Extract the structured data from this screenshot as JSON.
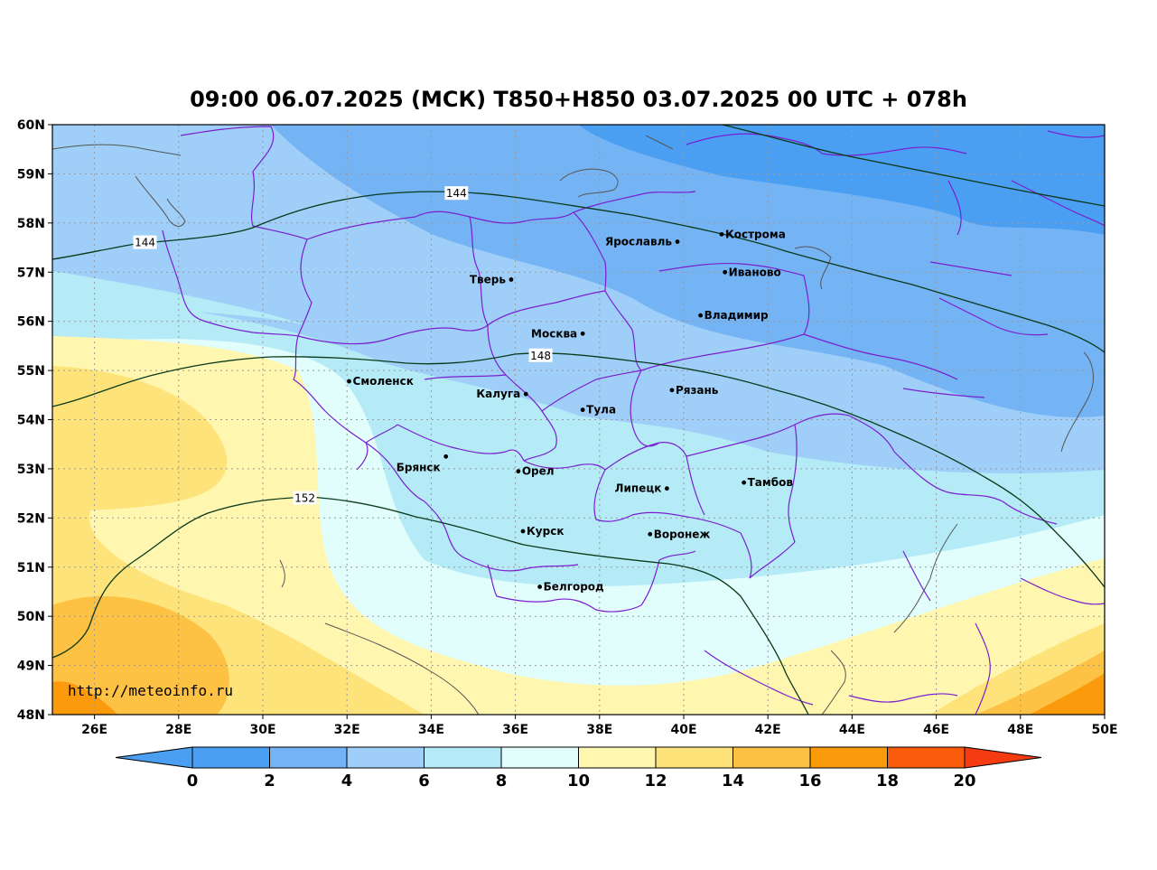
{
  "title": "09:00 06.07.2025 (МСК) T850+H850 03.07.2025 00 UTC + 078h",
  "watermark": "http://meteoinfo.ru",
  "latitude_labels": [
    "60N",
    "59N",
    "58N",
    "57N",
    "56N",
    "55N",
    "54N",
    "53N",
    "52N",
    "51N",
    "50N",
    "49N",
    "48N"
  ],
  "longitude_labels": [
    "26E",
    "28E",
    "30E",
    "32E",
    "34E",
    "36E",
    "38E",
    "40E",
    "42E",
    "44E",
    "46E",
    "48E",
    "50E"
  ],
  "cities": [
    {
      "name": "Кострома",
      "lon": 40.9,
      "lat": 57.77
    },
    {
      "name": "Ярославль",
      "lon": 39.85,
      "lat": 57.62
    },
    {
      "name": "Иваново",
      "lon": 40.98,
      "lat": 57.0
    },
    {
      "name": "Тверь",
      "lon": 35.9,
      "lat": 56.85
    },
    {
      "name": "Владимир",
      "lon": 40.4,
      "lat": 56.12
    },
    {
      "name": "Москва",
      "lon": 37.6,
      "lat": 55.75
    },
    {
      "name": "Смоленск",
      "lon": 32.05,
      "lat": 54.78
    },
    {
      "name": "Калуга",
      "lon": 36.25,
      "lat": 54.52
    },
    {
      "name": "Рязань",
      "lon": 39.72,
      "lat": 54.6
    },
    {
      "name": "Тула",
      "lon": 37.6,
      "lat": 54.2
    },
    {
      "name": "Брянск",
      "lon": 34.35,
      "lat": 53.25
    },
    {
      "name": "Орел",
      "lon": 36.07,
      "lat": 52.95
    },
    {
      "name": "Липецк",
      "lon": 39.6,
      "lat": 52.6
    },
    {
      "name": "Тамбов",
      "lon": 41.43,
      "lat": 52.72
    },
    {
      "name": "Курск",
      "lon": 36.18,
      "lat": 51.73
    },
    {
      "name": "Воронеж",
      "lon": 39.2,
      "lat": 51.67
    },
    {
      "name": "Белгород",
      "lon": 36.58,
      "lat": 50.6
    }
  ],
  "height_contours": [
    {
      "label": "144",
      "label_lon": 34.6,
      "label_lat": 58.6
    },
    {
      "label": "144",
      "label_lon": 27.2,
      "label_lat": 57.6
    },
    {
      "label": "148",
      "label_lon": 36.6,
      "label_lat": 55.3
    },
    {
      "label": "152",
      "label_lon": 31.0,
      "label_lat": 52.4
    }
  ],
  "colorbar": {
    "labels": [
      "0",
      "2",
      "4",
      "6",
      "8",
      "10",
      "12",
      "14",
      "16",
      "18",
      "20"
    ],
    "colors": [
      "#4a9ff2",
      "#4a9ff2",
      "#74b4f5",
      "#9fcff8",
      "#b4ebf7",
      "#e1fdfc",
      "#fff6b0",
      "#fee37a",
      "#fdc143",
      "#fb9b0b",
      "#fa5b0b",
      "#f73b15"
    ],
    "extend_colors": {
      "low": "#4a9ff2",
      "high": "#f53c10"
    }
  },
  "colors": {
    "region_border": "#7a1fcf",
    "contour_line": "#0a3a1a",
    "grid": "#999999",
    "water": "#555555"
  }
}
